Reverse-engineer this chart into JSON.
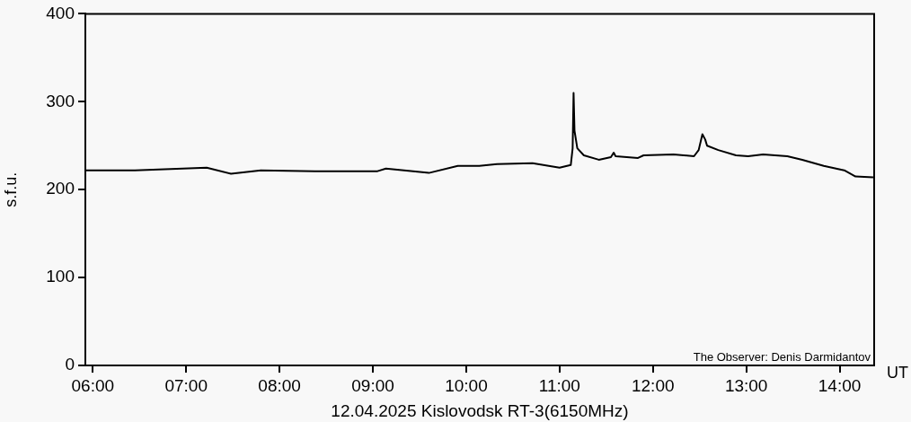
{
  "chart_data": {
    "type": "line",
    "xlabel": "12.04.2025 Kislovodsk RT-3(6150MHz)",
    "ylabel": "s.f.u.",
    "annotations": [
      "The Observer: Denis Darmidantov",
      "UT"
    ],
    "xlim": [
      5.92,
      14.37
    ],
    "ylim": [
      0,
      400
    ],
    "xticks": [
      {
        "value": 6,
        "label": "06:00"
      },
      {
        "value": 7,
        "label": "07:00"
      },
      {
        "value": 8,
        "label": "08:00"
      },
      {
        "value": 9,
        "label": "09:00"
      },
      {
        "value": 10,
        "label": "10:00"
      },
      {
        "value": 11,
        "label": "11:00"
      },
      {
        "value": 12,
        "label": "12:00"
      },
      {
        "value": 13,
        "label": "13:00"
      },
      {
        "value": 14,
        "label": "14:00"
      }
    ],
    "yticks": [
      0,
      100,
      200,
      300,
      400
    ],
    "marker": "none",
    "line_style": "solid",
    "series": [
      {
        "color": "#000000",
        "x": [
          5.92,
          6.45,
          7.22,
          7.48,
          7.8,
          8.38,
          9.05,
          9.14,
          9.6,
          9.91,
          10.14,
          10.33,
          10.71,
          11.0,
          11.12,
          11.14,
          11.15,
          11.16,
          11.19,
          11.26,
          11.42,
          11.55,
          11.58,
          11.6,
          11.84,
          11.9,
          12.22,
          12.44,
          12.49,
          12.53,
          12.56,
          12.58,
          12.7,
          12.89,
          13.02,
          13.18,
          13.44,
          13.6,
          13.83,
          14.05,
          14.17,
          14.36
        ],
        "values": [
          222,
          222,
          225,
          218,
          222,
          221,
          221,
          224,
          219,
          227,
          227,
          229,
          230,
          225,
          228,
          247,
          310,
          267,
          247,
          239,
          234,
          237,
          242,
          238,
          236,
          239,
          240,
          238,
          245,
          263,
          257,
          250,
          245,
          239,
          238,
          240,
          238,
          234,
          227,
          222,
          215,
          214
        ]
      }
    ]
  }
}
